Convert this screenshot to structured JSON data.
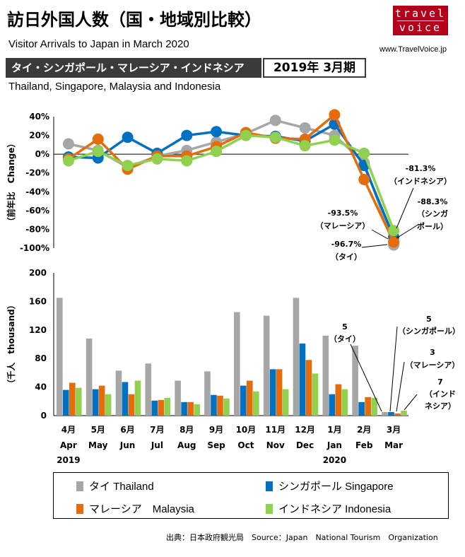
{
  "header": {
    "title": "訪日外国人数（国・地域別比較）",
    "subtitle": "Visitor Arrivals to Japan in March 2020",
    "logo_line1": "travel",
    "logo_line2": "voice",
    "site": "www.TravelVoice.jp",
    "banner": "タイ・シンガポール・マレーシア・インドネシア",
    "period": "2019年 3月期",
    "countries": "Thailand, Singapore, Malaysia and Indonesia"
  },
  "colors": {
    "thailand": "#a6a6a6",
    "singapore": "#0070c0",
    "malaysia": "#e46c0a",
    "indonesia": "#92d050"
  },
  "chart_data": [
    {
      "type": "line",
      "ylabel": "（前年比　Change）",
      "ylim": [
        -100,
        40
      ],
      "yticks": [
        "40%",
        "20%",
        "0%",
        "-20%",
        "-40%",
        "-60%",
        "-80%",
        "-100%"
      ],
      "ytick_values": [
        40,
        20,
        0,
        -20,
        -40,
        -60,
        -80,
        -100
      ],
      "series": [
        {
          "name": "タイ Thailand",
          "key": "thailand",
          "values": [
            11,
            4,
            -14,
            -2,
            4,
            13,
            22,
            36,
            28,
            20,
            -9,
            -96.7
          ]
        },
        {
          "name": "シンガポール Singapore",
          "key": "singapore",
          "values": [
            -3,
            -4,
            18,
            1,
            20,
            24,
            20,
            19,
            14,
            32,
            -12,
            -88.3
          ]
        },
        {
          "name": "マレーシア Malaysia",
          "key": "malaysia",
          "values": [
            -5,
            16,
            -16,
            -2,
            -2,
            8,
            23,
            17,
            16,
            42,
            -27,
            -93.5
          ]
        },
        {
          "name": "インドネシア Indonesia",
          "key": "indonesia",
          "values": [
            -7,
            3,
            -12,
            -5,
            -7,
            3,
            20,
            18,
            9,
            15,
            1,
            -81.3
          ]
        }
      ],
      "annotations": [
        {
          "value": "-81.3%",
          "label": "（インドネシア）"
        },
        {
          "value": "-88.3%",
          "label": "（シンガ",
          "label2": "ポール）"
        },
        {
          "value": "-93.5%",
          "label": "（マレーシア）"
        },
        {
          "value": "-96.7%",
          "label": "（タイ）"
        }
      ]
    },
    {
      "type": "bar",
      "ylabel": "（千人　thousand）",
      "ylim": [
        0,
        200
      ],
      "yticks": [
        "200",
        "160",
        "120",
        "80",
        "40",
        "0"
      ],
      "ytick_values": [
        200,
        160,
        120,
        80,
        40,
        0
      ],
      "categories_jp": [
        "4月",
        "5月",
        "6月",
        "7月",
        "8月",
        "9月",
        "10月",
        "11月",
        "12月",
        "1月",
        "2月",
        "3月"
      ],
      "categories_en": [
        "Apr",
        "May",
        "Jun",
        "Jul",
        "Aug",
        "Sep",
        "Oct",
        "Nov",
        "Dec",
        "Jan",
        "Feb",
        "Mar"
      ],
      "year_2019": "2019",
      "year_2020": "2020",
      "series": [
        {
          "name": "タイ Thailand",
          "key": "thailand",
          "values": [
            165,
            108,
            63,
            73,
            49,
            62,
            145,
            140,
            165,
            112,
            98,
            5
          ]
        },
        {
          "name": "シンガポール Singapore",
          "key": "singapore",
          "values": [
            36,
            37,
            47,
            21,
            19,
            29,
            42,
            65,
            101,
            30,
            19,
            5
          ]
        },
        {
          "name": "マレーシア Malaysia",
          "key": "malaysia",
          "values": [
            46,
            42,
            30,
            22,
            19,
            28,
            49,
            65,
            78,
            44,
            26,
            3
          ]
        },
        {
          "name": "インドネシア Indonesia",
          "key": "indonesia",
          "values": [
            39,
            30,
            49,
            25,
            16,
            24,
            34,
            37,
            59,
            37,
            25,
            7
          ]
        }
      ],
      "annotations": [
        {
          "value": "5",
          "label": "（タイ）"
        },
        {
          "value": "5",
          "label": "（シンガポール）"
        },
        {
          "value": "3",
          "label": "（マレーシア）"
        },
        {
          "value": "7",
          "label": "（インド",
          "label2": "ネシア）"
        }
      ]
    }
  ],
  "legend": [
    {
      "label": "タイ Thailand",
      "key": "thailand"
    },
    {
      "label": "シンガポール Singapore",
      "key": "singapore"
    },
    {
      "label": "マレーシア　Malaysia",
      "key": "malaysia"
    },
    {
      "label": "インドネシア Indonesia",
      "key": "indonesia"
    }
  ],
  "source": "出典：日本政府観光局　Source：Japan　National Tourism　Organization"
}
